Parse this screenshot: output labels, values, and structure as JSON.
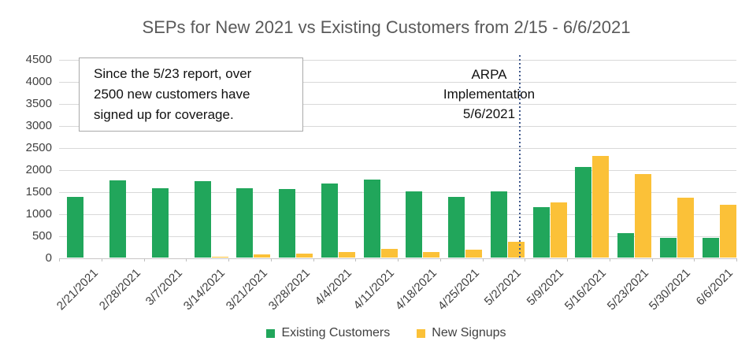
{
  "title": "SEPs for New 2021 vs Existing Customers from 2/15 - 6/6/2021",
  "note_box": {
    "lines": [
      "Since the 5/23 report, over",
      "2500 new customers have",
      "signed up for coverage."
    ]
  },
  "arpa_annotation": {
    "lines": [
      "ARPA",
      "Implementation",
      "5/6/2021"
    ]
  },
  "colors": {
    "existing_customers": "#21A65B",
    "new_signups": "#FBC138",
    "vline": "#41598C",
    "gridline": "#D9D9D9",
    "title_text": "#595959",
    "axis_text": "#404040"
  },
  "chart_data": {
    "type": "bar",
    "title": "SEPs for New 2021 vs Existing Customers from 2/15 - 6/6/2021",
    "categories": [
      "2/21/2021",
      "2/28/2021",
      "3/7/2021",
      "3/14/2021",
      "3/21/2021",
      "3/28/2021",
      "4/4/2021",
      "4/11/2021",
      "4/18/2021",
      "4/25/2021",
      "5/2/2021",
      "5/9/2021",
      "5/16/2021",
      "5/23/2021",
      "5/30/2021",
      "6/6/2021"
    ],
    "series": [
      {
        "name": "Existing Customers",
        "color": "#21A65B",
        "values": [
          1375,
          1750,
          1575,
          1725,
          1575,
          1550,
          1675,
          1775,
          1500,
          1375,
          1500,
          1150,
          2050,
          550,
          450,
          450
        ]
      },
      {
        "name": "New Signups",
        "color": "#FBC138",
        "values": [
          0,
          0,
          0,
          20,
          75,
          90,
          125,
          200,
          125,
          175,
          350,
          1250,
          2300,
          1900,
          1350,
          1200
        ]
      }
    ],
    "xlabel": "",
    "ylabel": "",
    "ylim": [
      0,
      4500
    ],
    "ytick_step": 500,
    "grid": true,
    "legend_position": "bottom",
    "annotations": {
      "vline": {
        "between": [
          "5/2/2021",
          "5/9/2021"
        ],
        "style": "dotted",
        "label": "ARPA Implementation 5/6/2021"
      },
      "note": "Since the 5/23 report, over 2500 new customers have signed up for coverage."
    }
  }
}
